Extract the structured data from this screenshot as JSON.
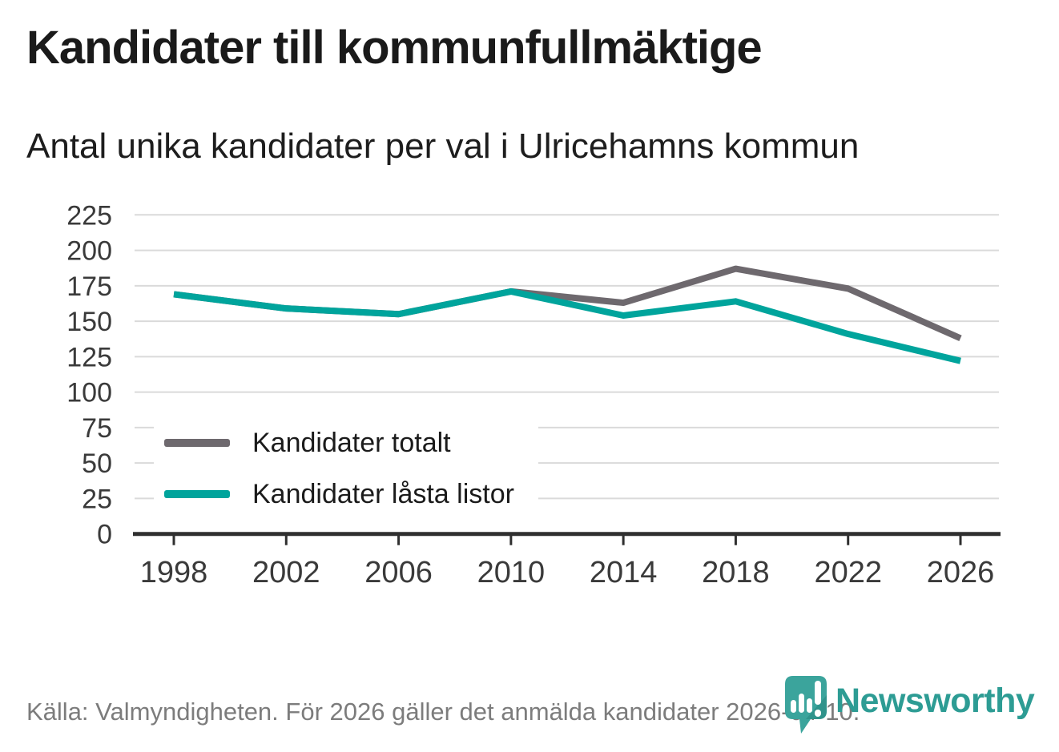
{
  "chart_data": {
    "type": "line",
    "title": "Kandidater till kommunfullmäktige",
    "subtitle": "Antal unika kandidater per val i Ulricehamns kommun",
    "x": [
      1998,
      2002,
      2006,
      2010,
      2014,
      2018,
      2022,
      2026
    ],
    "series": [
      {
        "name": "Kandidater totalt",
        "color": "#6e696e",
        "values": [
          169,
          159,
          155,
          171,
          163,
          187,
          173,
          138
        ]
      },
      {
        "name": "Kandidater låsta listor",
        "color": "#00a49c",
        "values": [
          169,
          159,
          155,
          171,
          154,
          164,
          141,
          122
        ]
      }
    ],
    "ylim": [
      0,
      225
    ],
    "ytick_step": 25,
    "xtick_labels": [
      "1998",
      "2002",
      "2006",
      "2010",
      "2014",
      "2018",
      "2022",
      "2026"
    ],
    "grid": "horizontal-only",
    "legend_position": "inside-left-bottom"
  },
  "footer": {
    "source_text": "Källa: Valmyndigheten. För 2026 gäller det anmälda kandidater 2026-04-10.",
    "brand": "Newsworthy",
    "brand_color": "#2d9c94",
    "logo_icon": "newsworthy-speech-bubble-bar-chart-icon"
  },
  "colors": {
    "background": "#ffffff",
    "gridline": "#dadada",
    "axis": "#2f2f2f",
    "tick_label": "#3a3a3a",
    "title_text": "#1a1a1a",
    "footer_text": "#7c7c7c",
    "series_gray": "#6e696e",
    "accent_teal": "#00a49c"
  }
}
